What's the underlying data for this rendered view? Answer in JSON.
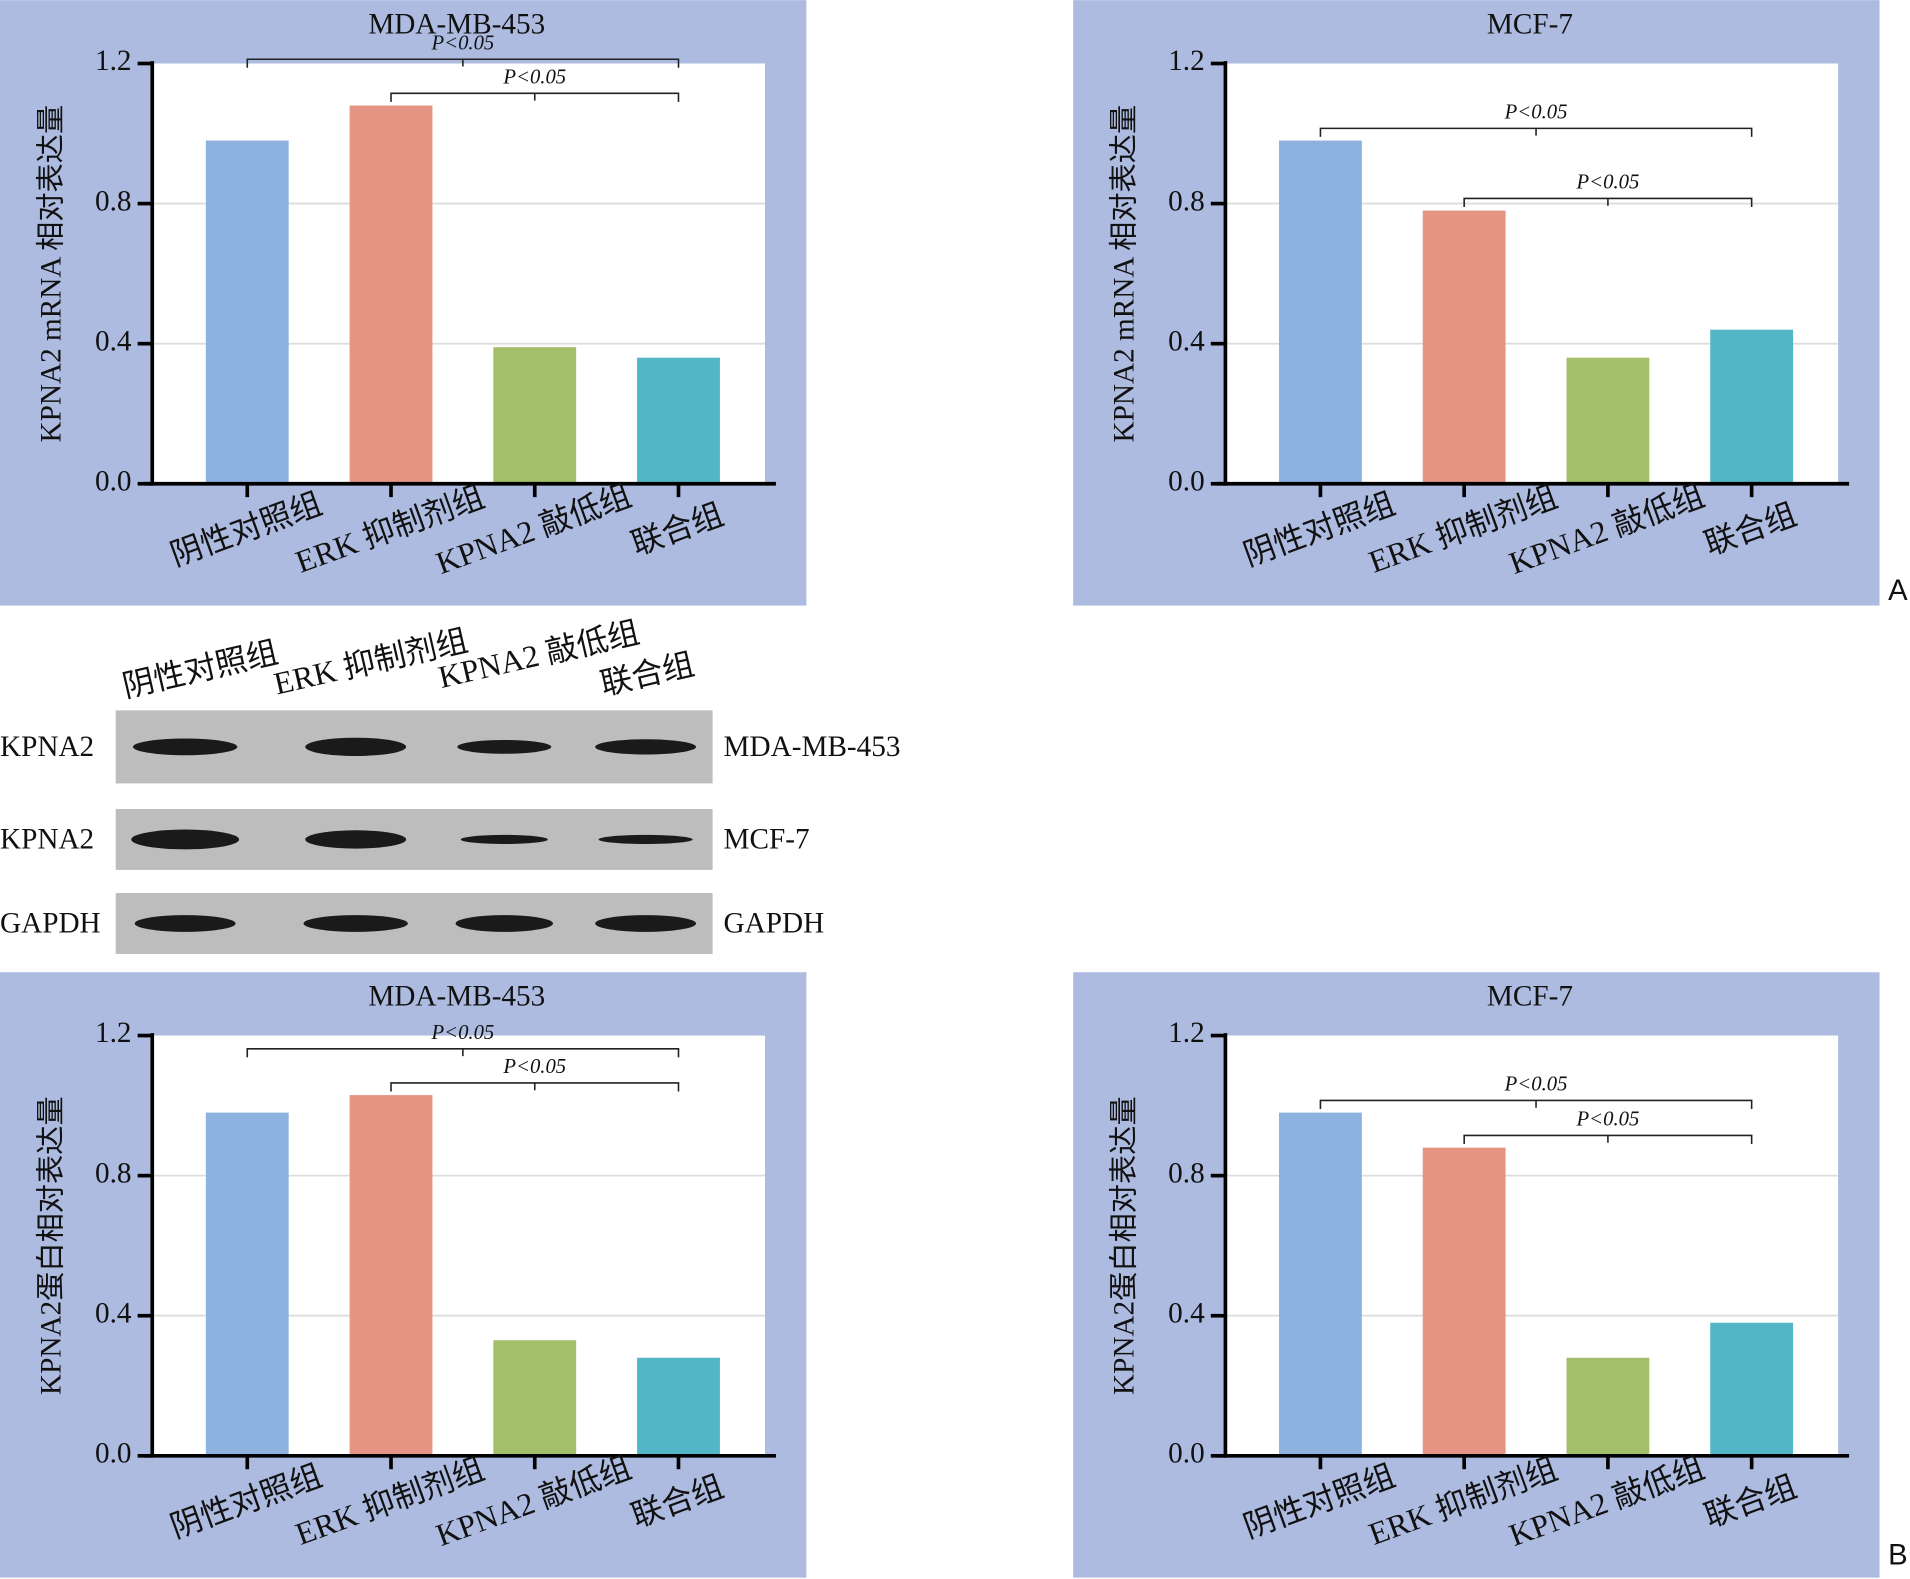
{
  "chart_data": [
    {
      "type": "bar",
      "title": "MDA-MB-453",
      "ylabel": "KPNA2 mRNA 相对表达量",
      "categories": [
        "阴性对照组",
        "ERK 抑制剂组",
        "KPNA2 敲低组",
        "联合组"
      ],
      "values": [
        0.98,
        1.08,
        0.39,
        0.36
      ],
      "colors": [
        "#8db2e0",
        "#e69585",
        "#a3bf6a",
        "#52b6c7"
      ],
      "ylim": [
        0,
        1.2
      ],
      "yticks": [
        {
          "value": 0,
          "label": "0.0"
        },
        0.4,
        0.8,
        1.2
      ],
      "grid": true,
      "brackets": [
        {
          "label": "P<0.05",
          "from": "ERK 抑制剂组",
          "to": "联合组"
        },
        {
          "label": "P<0.05",
          "from": "阴性对照组",
          "to": "联合组"
        }
      ]
    },
    {
      "type": "bar",
      "title": "MCF-7",
      "ylabel": "KPNA2 mRNA 相对表达量",
      "categories": [
        "阴性对照组",
        "ERK 抑制剂组",
        "KPNA2 敲低组",
        "联合组"
      ],
      "values": [
        0.98,
        0.78,
        0.36,
        0.44
      ],
      "colors": [
        "#8db2e0",
        "#e69585",
        "#a3bf6a",
        "#52b6c7"
      ],
      "ylim": [
        0,
        1.2
      ],
      "yticks": [
        {
          "value": 0,
          "label": "0.0"
        },
        0.4,
        0.8,
        1.2
      ],
      "grid": true,
      "brackets": [
        {
          "label": "P<0.05",
          "from": "ERK 抑制剂组",
          "to": "联合组"
        },
        {
          "label": "P<0.05",
          "from": "阴性对照组",
          "to": "联合组"
        }
      ]
    },
    {
      "type": "bar",
      "title": "MDA-MB-453",
      "ylabel": "KPNA2蛋白相对表达量",
      "categories": [
        "阴性对照组",
        "ERK 抑制剂组",
        "KPNA2 敲低组",
        "联合组"
      ],
      "values": [
        0.98,
        1.03,
        0.33,
        0.28
      ],
      "colors": [
        "#8db2e0",
        "#e69585",
        "#a3bf6a",
        "#52b6c7"
      ],
      "ylim": [
        0,
        1.2
      ],
      "yticks": [
        {
          "value": 0,
          "label": "0.0"
        },
        0.4,
        0.8,
        1.2
      ],
      "grid": true,
      "brackets": [
        {
          "label": "P<0.05",
          "from": "ERK 抑制剂组",
          "to": "联合组"
        },
        {
          "label": "P<0.05",
          "from": "阴性对照组",
          "to": "联合组"
        }
      ]
    },
    {
      "type": "bar",
      "title": "MCF-7",
      "ylabel": "KPNA2蛋白相对表达量",
      "categories": [
        "阴性对照组",
        "ERK 抑制剂组",
        "KPNA2 敲低组",
        "联合组"
      ],
      "values": [
        0.98,
        0.88,
        0.28,
        0.38
      ],
      "colors": [
        "#8db2e0",
        "#e69585",
        "#a3bf6a",
        "#52b6c7"
      ],
      "ylim": [
        0,
        1.2
      ],
      "yticks": [
        {
          "value": 0,
          "label": "0.0"
        },
        0.4,
        0.8,
        1.2
      ],
      "grid": true,
      "brackets": [
        {
          "label": "P<0.05",
          "from": "ERK 抑制剂组",
          "to": "联合组"
        },
        {
          "label": "P<0.05",
          "from": "阴性对照组",
          "to": "联合组"
        }
      ]
    }
  ],
  "blot": {
    "lanes": [
      "阴性对照组",
      "ERK 抑制剂组",
      "KPNA2 敲低组",
      "联合组"
    ],
    "rows": [
      {
        "protein": "KPNA2",
        "cell_line": "MDA-MB-453"
      },
      {
        "protein": "KPNA2",
        "cell_line": "MCF-7"
      },
      {
        "protein": "GAPDH",
        "cell_line": "GAPDH"
      }
    ]
  },
  "panel_labels": [
    "A",
    "B"
  ]
}
